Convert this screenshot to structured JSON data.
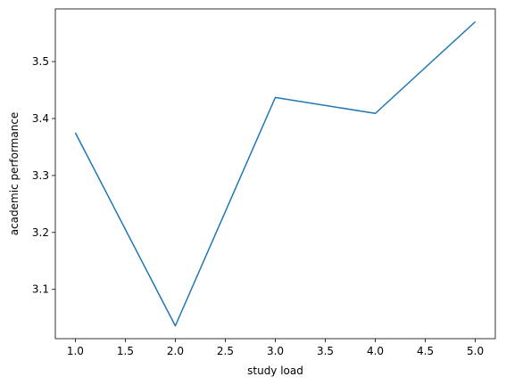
{
  "chart_data": {
    "type": "line",
    "title": "",
    "xlabel": "study load",
    "ylabel": "academic performance",
    "xlim": [
      0.8,
      5.2
    ],
    "ylim": [
      3.0135,
      3.5925
    ],
    "grid": false,
    "x_ticks": [
      1.0,
      1.5,
      2.0,
      2.5,
      3.0,
      3.5,
      4.0,
      4.5,
      5.0
    ],
    "x_tick_labels": [
      "1.0",
      "1.5",
      "2.0",
      "2.5",
      "3.0",
      "3.5",
      "4.0",
      "4.5",
      "5.0"
    ],
    "y_ticks": [
      3.1,
      3.2,
      3.3,
      3.4,
      3.5
    ],
    "y_tick_labels": [
      "3.1",
      "3.2",
      "3.3",
      "3.4",
      "3.5"
    ],
    "x": [
      1,
      2,
      3,
      4,
      5
    ],
    "series": [
      {
        "color": "#1f77b4",
        "values": [
          3.375,
          3.036,
          3.437,
          3.409,
          3.57
        ]
      }
    ]
  }
}
